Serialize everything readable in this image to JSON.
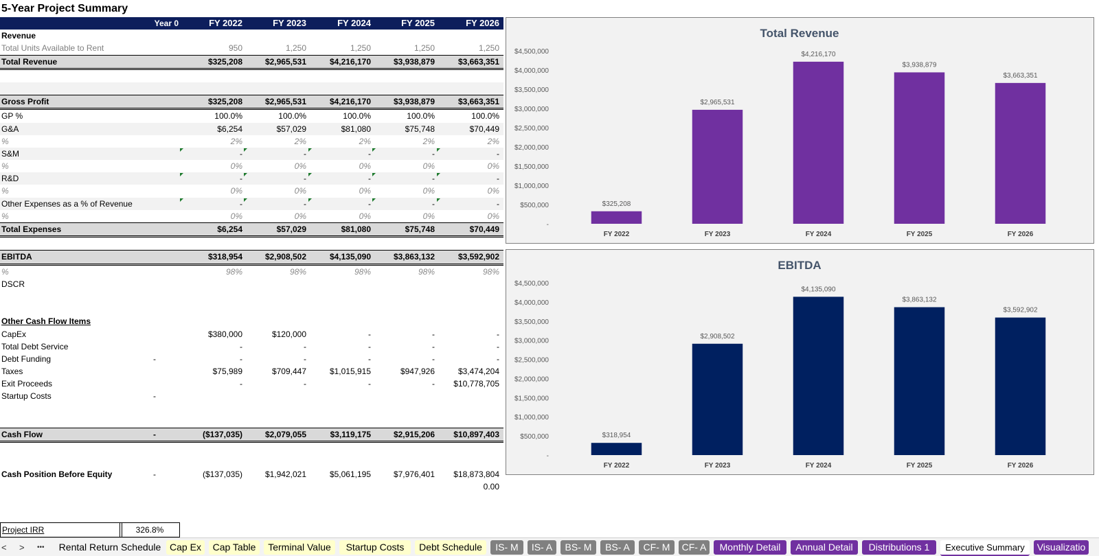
{
  "title": "5-Year Project Summary",
  "header": {
    "c0": "Year 0",
    "c1": "FY 2022",
    "c2": "FY 2023",
    "c3": "FY 2024",
    "c4": "FY 2025",
    "c5": "FY 2026"
  },
  "rows": [
    {
      "label": "Revenue",
      "style": "bold",
      "v": [
        "",
        "",
        "",
        "",
        "",
        ""
      ]
    },
    {
      "label": "Total Units Available to Rent",
      "style": "dim",
      "v": [
        "",
        "950",
        "1,250",
        "1,250",
        "1,250",
        "1,250"
      ]
    },
    {
      "label": "Total Revenue",
      "style": "tot",
      "v": [
        "",
        "$325,208",
        "$2,965,531",
        "$4,216,170",
        "$3,938,879",
        "$3,663,351"
      ]
    },
    {
      "label": "",
      "style": "",
      "v": [
        "",
        "",
        "",
        "",
        "",
        ""
      ]
    },
    {
      "label": "",
      "style": "grey",
      "v": [
        "",
        "",
        "",
        "",
        "",
        ""
      ]
    },
    {
      "label": "Gross Profit",
      "style": "tot",
      "v": [
        "",
        "$325,208",
        "$2,965,531",
        "$4,216,170",
        "$3,938,879",
        "$3,663,351"
      ]
    },
    {
      "label": "GP %",
      "style": "",
      "v": [
        "",
        "100.0%",
        "100.0%",
        "100.0%",
        "100.0%",
        "100.0%"
      ]
    },
    {
      "label": "G&A",
      "style": "grey",
      "v": [
        "",
        "$6,254",
        "$57,029",
        "$81,080",
        "$75,748",
        "$70,449"
      ]
    },
    {
      "label": "%",
      "style": "ital",
      "v": [
        "",
        "2%",
        "2%",
        "2%",
        "2%",
        "2%"
      ]
    },
    {
      "label": "S&M",
      "style": "grey tri",
      "v": [
        "",
        "-",
        "-",
        "-",
        "-",
        "-"
      ]
    },
    {
      "label": "%",
      "style": "ital",
      "v": [
        "",
        "0%",
        "0%",
        "0%",
        "0%",
        "0%"
      ]
    },
    {
      "label": "R&D",
      "style": "grey tri",
      "v": [
        "",
        "-",
        "-",
        "-",
        "-",
        "-"
      ]
    },
    {
      "label": "%",
      "style": "ital",
      "v": [
        "",
        "0%",
        "0%",
        "0%",
        "0%",
        "0%"
      ]
    },
    {
      "label": "Other Expenses as a % of Revenue",
      "style": "grey tri",
      "v": [
        "",
        "-",
        "-",
        "-",
        "-",
        "-"
      ]
    },
    {
      "label": "%",
      "style": "ital",
      "v": [
        "",
        "0%",
        "0%",
        "0%",
        "0%",
        "0%"
      ]
    },
    {
      "label": "Total Expenses",
      "style": "tot",
      "v": [
        "",
        "$6,254",
        "$57,029",
        "$81,080",
        "$75,748",
        "$70,449"
      ]
    },
    {
      "label": "",
      "style": "",
      "v": [
        "",
        "",
        "",
        "",
        "",
        ""
      ]
    },
    {
      "label": "EBITDA",
      "style": "tot",
      "v": [
        "",
        "$318,954",
        "$2,908,502",
        "$4,135,090",
        "$3,863,132",
        "$3,592,902"
      ]
    },
    {
      "label": "%",
      "style": "ital",
      "v": [
        "",
        "98%",
        "98%",
        "98%",
        "98%",
        "98%"
      ]
    },
    {
      "label": "DSCR",
      "style": "",
      "v": [
        "",
        "",
        "",
        "",
        "",
        ""
      ]
    },
    {
      "label": "",
      "style": "",
      "v": [
        "",
        "",
        "",
        "",
        "",
        ""
      ]
    },
    {
      "label": "",
      "style": "",
      "v": [
        "",
        "",
        "",
        "",
        "",
        ""
      ]
    },
    {
      "label": "Other Cash Flow Items",
      "style": "und",
      "v": [
        "",
        "",
        "",
        "",
        "",
        ""
      ]
    },
    {
      "label": "CapEx",
      "style": "",
      "v": [
        "",
        "$380,000",
        "$120,000",
        "-",
        "-",
        "-"
      ]
    },
    {
      "label": "Total Debt Service",
      "style": "",
      "v": [
        "",
        "-",
        "-",
        "-",
        "-",
        "-"
      ]
    },
    {
      "label": "Debt Funding",
      "style": "",
      "v": [
        "-",
        "-",
        "-",
        "-",
        "-",
        "-"
      ]
    },
    {
      "label": "Taxes",
      "style": "",
      "v": [
        "",
        "$75,989",
        "$709,447",
        "$1,015,915",
        "$947,926",
        "$3,474,204"
      ]
    },
    {
      "label": "Exit Proceeds",
      "style": "",
      "v": [
        "",
        "-",
        "-",
        "-",
        "-",
        "$10,778,705"
      ]
    },
    {
      "label": "Startup Costs",
      "style": "",
      "v": [
        "-",
        "",
        "",
        "",
        "",
        ""
      ]
    },
    {
      "label": "",
      "style": "",
      "v": [
        "",
        "",
        "",
        "",
        "",
        ""
      ]
    },
    {
      "label": "",
      "style": "",
      "v": [
        "",
        "",
        "",
        "",
        "",
        ""
      ]
    },
    {
      "label": "Cash Flow",
      "style": "tot",
      "v": [
        "-",
        "($137,035)",
        "$2,079,055",
        "$3,119,175",
        "$2,915,206",
        "$10,897,403"
      ]
    },
    {
      "label": "",
      "style": "",
      "v": [
        "",
        "",
        "",
        "",
        "",
        ""
      ]
    },
    {
      "label": "",
      "style": "",
      "v": [
        "",
        "",
        "",
        "",
        "",
        ""
      ]
    },
    {
      "label": "Cash Position Before Equity",
      "style": "bold-label",
      "v": [
        "-",
        "($137,035)",
        "$1,942,021",
        "$5,061,195",
        "$7,976,401",
        "$18,873,804"
      ]
    },
    {
      "label": "",
      "style": "",
      "v": [
        "",
        "",
        "",
        "",
        "",
        "0.00"
      ]
    }
  ],
  "irr": {
    "label": "Project IRR",
    "value": "326.8%"
  },
  "chart_data": [
    {
      "type": "bar",
      "title": "Total Revenue",
      "categories": [
        "FY 2022",
        "FY 2023",
        "FY 2024",
        "FY 2025",
        "FY 2026"
      ],
      "values": [
        325208,
        2965531,
        4216170,
        3938879,
        3663351
      ],
      "data_labels": [
        "$325,208",
        "$2,965,531",
        "$4,216,170",
        "$3,938,879",
        "$3,663,351"
      ],
      "ylim": [
        0,
        4500000
      ],
      "yticks": [
        0,
        500000,
        1000000,
        1500000,
        2000000,
        2500000,
        3000000,
        3500000,
        4000000,
        4500000
      ],
      "ytick_labels": [
        "-",
        "$500,000",
        "$1,000,000",
        "$1,500,000",
        "$2,000,000",
        "$2,500,000",
        "$3,000,000",
        "$3,500,000",
        "$4,000,000",
        "$4,500,000"
      ],
      "color": "#7030a0",
      "grid": false
    },
    {
      "type": "bar",
      "title": "EBITDA",
      "categories": [
        "FY 2022",
        "FY 2023",
        "FY 2024",
        "FY 2025",
        "FY 2026"
      ],
      "values": [
        318954,
        2908502,
        4135090,
        3863132,
        3592902
      ],
      "data_labels": [
        "$318,954",
        "$2,908,502",
        "$4,135,090",
        "$3,863,132",
        "$3,592,902"
      ],
      "ylim": [
        0,
        4500000
      ],
      "yticks": [
        0,
        500000,
        1000000,
        1500000,
        2000000,
        2500000,
        3000000,
        3500000,
        4000000,
        4500000
      ],
      "ytick_labels": [
        "-",
        "$500,000",
        "$1,000,000",
        "$1,500,000",
        "$2,000,000",
        "$2,500,000",
        "$3,000,000",
        "$3,500,000",
        "$4,000,000",
        "$4,500,000"
      ],
      "color": "#002060",
      "grid": false
    }
  ],
  "nav": {
    "prev": "<",
    "next": ">",
    "more": "•••"
  },
  "tabs": [
    {
      "label": "Rental Return Schedule",
      "color": "#f3f3f3",
      "text": "#000"
    },
    {
      "label": "Cap Ex",
      "color": "#ffffcc",
      "text": "#000"
    },
    {
      "label": "Cap Table",
      "color": "#ffffcc",
      "text": "#000"
    },
    {
      "label": "Terminal Value",
      "color": "#ffffcc",
      "text": "#000"
    },
    {
      "label": "Startup Costs",
      "color": "#ffffcc",
      "text": "#000"
    },
    {
      "label": "Debt Schedule",
      "color": "#ffffcc",
      "text": "#000"
    },
    {
      "label": "IS- M",
      "color": "#808080",
      "text": "#fff"
    },
    {
      "label": "IS- A",
      "color": "#808080",
      "text": "#fff"
    },
    {
      "label": "BS- M",
      "color": "#808080",
      "text": "#fff"
    },
    {
      "label": "BS- A",
      "color": "#808080",
      "text": "#fff"
    },
    {
      "label": "CF- M",
      "color": "#808080",
      "text": "#fff"
    },
    {
      "label": "CF- A",
      "color": "#808080",
      "text": "#fff"
    },
    {
      "label": "Monthly Detail",
      "color": "#7030a0",
      "text": "#fff"
    },
    {
      "label": "Annual Detail",
      "color": "#7030a0",
      "text": "#fff"
    },
    {
      "label": "Distributions 1",
      "color": "#7030a0",
      "text": "#fff"
    },
    {
      "label": "Executive Summary",
      "color": "#ffffff",
      "text": "#000",
      "active": true
    },
    {
      "label": "Visualizatio",
      "color": "#7030a0",
      "text": "#fff"
    }
  ]
}
